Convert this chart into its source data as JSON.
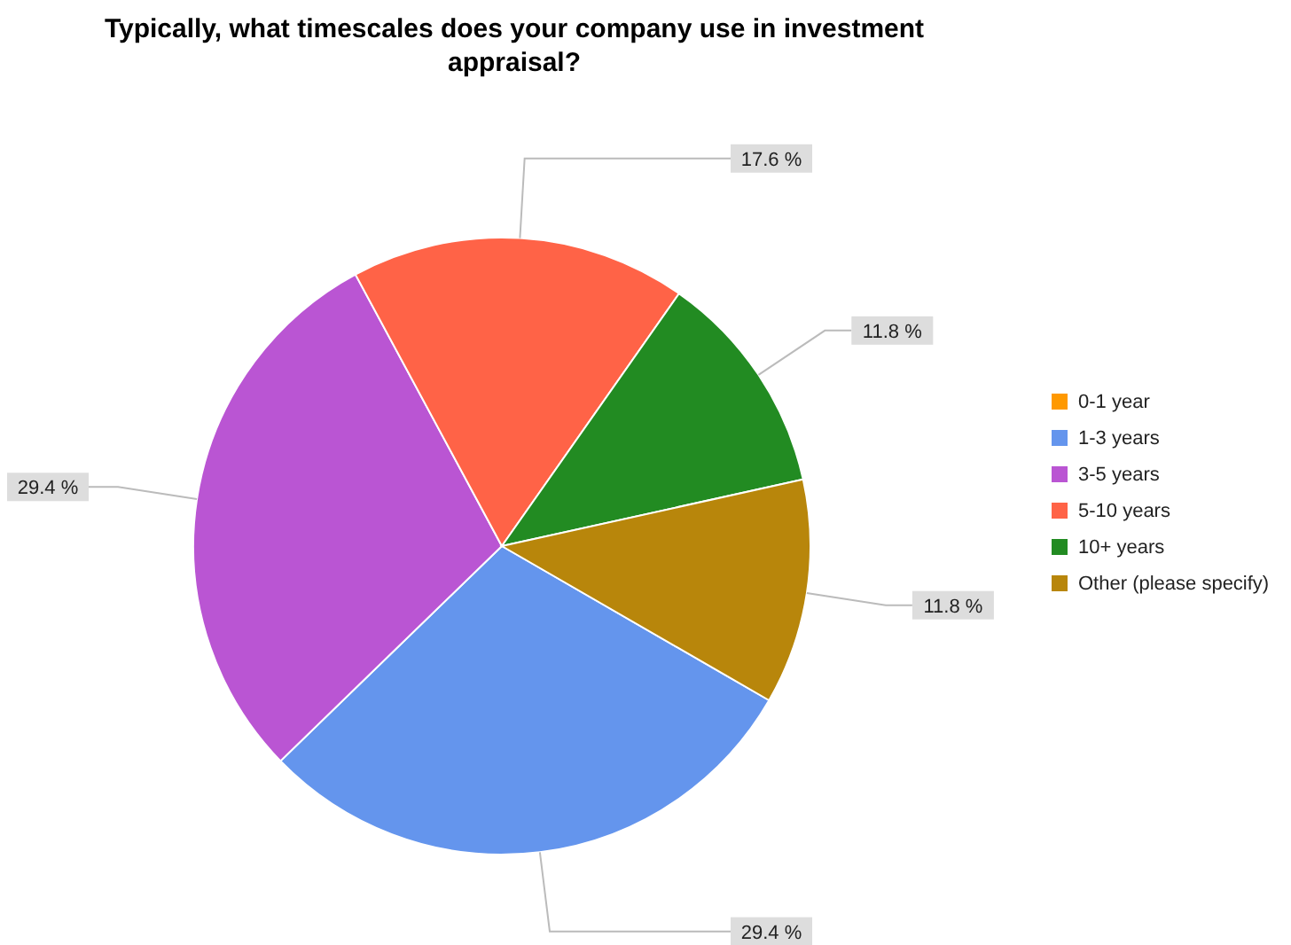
{
  "chart_data": {
    "type": "pie",
    "title": "Typically, what timescales does your company use in investment appraisal?",
    "categories": [
      "0-1 year",
      "1-3 years",
      "3-5 years",
      "5-10 years",
      "10+ years",
      "Other (please specify)"
    ],
    "values": [
      0,
      29.4,
      29.4,
      17.6,
      11.8,
      11.8
    ],
    "value_labels": [
      null,
      "29.4 %",
      "29.4 %",
      "17.6 %",
      "11.8 %",
      "11.8 %"
    ],
    "colors": [
      "#ff9900",
      "#6495ed",
      "#ba55d3",
      "#ff6347",
      "#228b22",
      "#b8860b"
    ],
    "legend": "right"
  }
}
